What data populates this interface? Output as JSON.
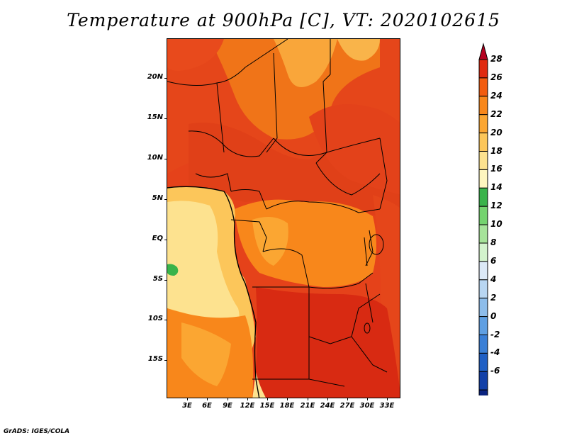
{
  "title": "Temperature at 900hPa [C], VT: 2020102615",
  "credit": "GrADS: IGES/COLA",
  "map": {
    "variable": "Temperature",
    "level": "900hPa",
    "units": "C",
    "valid_time": "2020102615",
    "lat_labels": [
      "20N",
      "15N",
      "10N",
      "5N",
      "EQ",
      "5S",
      "10S",
      "15S"
    ],
    "lon_labels": [
      "3E",
      "6E",
      "9E",
      "12E",
      "15E",
      "18E",
      "21E",
      "24E",
      "27E",
      "30E",
      "33E"
    ]
  },
  "colorbar": {
    "labels": [
      "28",
      "26",
      "24",
      "22",
      "20",
      "18",
      "16",
      "14",
      "12",
      "10",
      "8",
      "6",
      "4",
      "2",
      "0",
      "-2",
      "-4",
      "-6"
    ],
    "colors": [
      "#b5001f",
      "#e02a10",
      "#f25c0f",
      "#f8871b",
      "#fba632",
      "#fcc65a",
      "#fde28f",
      "#fef6bf",
      "#39b34a",
      "#74d36f",
      "#a6e39a",
      "#d3f3cd",
      "#dce9f7",
      "#b8d6f2",
      "#8dbdeb",
      "#5f9fe2",
      "#3a7fd6",
      "#1f5fc4",
      "#1240a8",
      "#0a2380",
      "#dcd7f0"
    ]
  }
}
